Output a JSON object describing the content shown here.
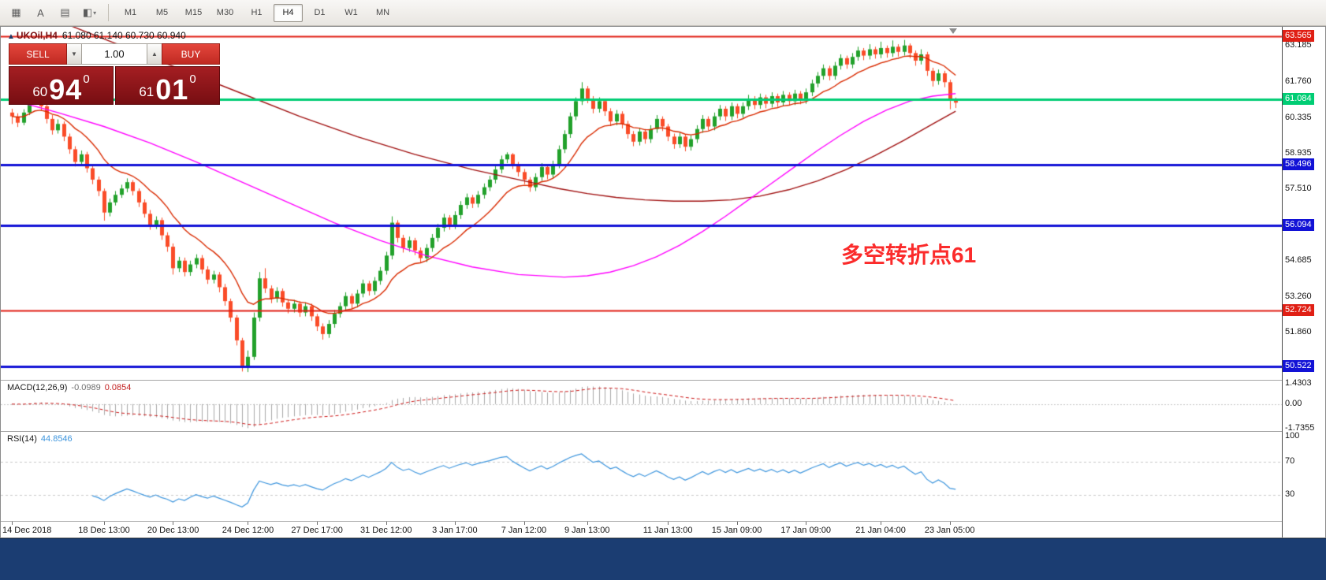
{
  "toolbar": {
    "icon_buttons": [
      {
        "name": "tile-windows-icon",
        "glyph": "▦"
      },
      {
        "name": "text-label-icon",
        "glyph": "A"
      },
      {
        "name": "text-frame-icon",
        "glyph": "▤"
      },
      {
        "name": "object-color-icon",
        "glyph": "◧",
        "dropdown": true
      }
    ],
    "timeframes": [
      "M1",
      "M5",
      "M15",
      "M30",
      "H1",
      "H4",
      "D1",
      "W1",
      "MN"
    ],
    "active_timeframe": "H4"
  },
  "chart": {
    "symbol_label": "UKOil,H4",
    "ohlc_text": "61.080 61.140 60.730 60.940"
  },
  "one_click": {
    "sell_label": "SELL",
    "buy_label": "BUY",
    "volume": "1.00",
    "sell_price": {
      "head": "60",
      "big": "94",
      "sup": "0"
    },
    "buy_price": {
      "head": "61",
      "big": "01",
      "sup": "0"
    }
  },
  "annotation": {
    "text": "多空转折点61",
    "color": "#fb2b2b"
  },
  "price_axis": {
    "plain_ticks": [
      "63.185",
      "61.760",
      "60.335",
      "58.935",
      "57.510",
      "54.685",
      "53.260",
      "51.860"
    ],
    "levels": [
      {
        "price": 63.565,
        "label": "63.565",
        "color": "#e01f14",
        "line_width": 2
      },
      {
        "price": 61.084,
        "label": "61.084",
        "color": "#00cd74",
        "line_width": 3
      },
      {
        "price": 58.496,
        "label": "58.496",
        "color": "#1212d6",
        "line_width": 3
      },
      {
        "price": 56.094,
        "label": "56.094",
        "color": "#1212d6",
        "line_width": 3
      },
      {
        "price": 52.724,
        "label": "52.724",
        "color": "#e01f14",
        "line_width": 2
      },
      {
        "price": 50.522,
        "label": "50.522",
        "color": "#1212d6",
        "line_width": 3
      }
    ]
  },
  "indicators": {
    "macd": {
      "label": "MACD(12,26,9)",
      "value1": "-0.0989",
      "value2": "0.0854",
      "fast": 12,
      "slow": 26,
      "signal": 9,
      "axis": [
        "1.4303",
        "0.00",
        "-1.7355"
      ],
      "ylim": [
        -1.7355,
        1.4303
      ],
      "bar_color": "#a8a8a8",
      "signal_color": "#cc1717"
    },
    "rsi": {
      "label": "RSI(14)",
      "value": "44.8546",
      "period": 14,
      "axis": [
        "100",
        "70",
        "30"
      ],
      "levels": [
        70,
        30
      ],
      "color": "#3d95dd",
      "level_color": "#c8c8c8"
    }
  },
  "chart_data": {
    "type": "candlestick",
    "symbol": "UKOil",
    "timeframe": "H4",
    "up_color": "#22a12b",
    "down_color": "#fa4c28",
    "ma_fast": {
      "type": "EMA",
      "period": 13,
      "color": "#d92b00"
    },
    "ma_mid": {
      "color": "#ff00ff",
      "points": [
        [
          0,
          61.05
        ],
        [
          8,
          60.55
        ],
        [
          16,
          60.0
        ],
        [
          24,
          59.35
        ],
        [
          32,
          58.6
        ],
        [
          40,
          57.8
        ],
        [
          48,
          57.0
        ],
        [
          56,
          56.2
        ],
        [
          64,
          55.5
        ],
        [
          72,
          54.9
        ],
        [
          80,
          54.45
        ],
        [
          88,
          54.15
        ],
        [
          96,
          54.05
        ],
        [
          100,
          54.1
        ],
        [
          104,
          54.25
        ],
        [
          108,
          54.5
        ],
        [
          112,
          54.85
        ],
        [
          116,
          55.3
        ],
        [
          120,
          55.85
        ],
        [
          124,
          56.45
        ],
        [
          128,
          57.1
        ],
        [
          132,
          57.75
        ],
        [
          136,
          58.4
        ],
        [
          140,
          59.05
        ],
        [
          144,
          59.65
        ],
        [
          148,
          60.2
        ],
        [
          152,
          60.65
        ],
        [
          156,
          61.0
        ],
        [
          160,
          61.2
        ],
        [
          164,
          61.3
        ]
      ]
    },
    "ma_slow": {
      "color": "#a01010",
      "points": [
        [
          0,
          64.8
        ],
        [
          10,
          64.0
        ],
        [
          20,
          63.1
        ],
        [
          30,
          62.2
        ],
        [
          40,
          61.3
        ],
        [
          50,
          60.4
        ],
        [
          60,
          59.6
        ],
        [
          70,
          58.9
        ],
        [
          80,
          58.3
        ],
        [
          90,
          57.8
        ],
        [
          95,
          57.55
        ],
        [
          100,
          57.35
        ],
        [
          105,
          57.2
        ],
        [
          110,
          57.1
        ],
        [
          115,
          57.05
        ],
        [
          120,
          57.05
        ],
        [
          125,
          57.1
        ],
        [
          130,
          57.25
        ],
        [
          135,
          57.5
        ],
        [
          140,
          57.85
        ],
        [
          145,
          58.3
        ],
        [
          150,
          58.85
        ],
        [
          155,
          59.45
        ],
        [
          160,
          60.1
        ],
        [
          164,
          60.6
        ]
      ]
    },
    "time_ticks": [
      {
        "label": "14 Dec 2018",
        "bar": 0
      },
      {
        "label": "18 Dec 13:00",
        "bar": 16
      },
      {
        "label": "20 Dec 13:00",
        "bar": 28
      },
      {
        "label": "24 Dec 12:00",
        "bar": 41
      },
      {
        "label": "27 Dec 17:00",
        "bar": 53
      },
      {
        "label": "31 Dec 12:00",
        "bar": 65
      },
      {
        "label": "3 Jan 17:00",
        "bar": 77
      },
      {
        "label": "7 Jan 12:00",
        "bar": 89
      },
      {
        "label": "9 Jan 13:00",
        "bar": 100
      },
      {
        "label": "11 Jan 13:00",
        "bar": 114
      },
      {
        "label": "15 Jan 09:00",
        "bar": 126
      },
      {
        "label": "17 Jan 09:00",
        "bar": 138
      },
      {
        "label": "21 Jan 04:00",
        "bar": 151
      },
      {
        "label": "23 Jan 05:00",
        "bar": 163
      }
    ],
    "candles": [
      [
        60.55,
        60.7,
        60.1,
        60.4
      ],
      [
        60.4,
        60.52,
        59.98,
        60.15
      ],
      [
        60.15,
        60.68,
        60.05,
        60.55
      ],
      [
        60.55,
        61.25,
        60.45,
        61.1
      ],
      [
        61.1,
        61.58,
        60.95,
        61.35
      ],
      [
        61.35,
        61.45,
        60.62,
        60.8
      ],
      [
        60.8,
        60.92,
        60.12,
        60.3
      ],
      [
        60.3,
        60.45,
        59.68,
        59.85
      ],
      [
        59.85,
        60.28,
        59.72,
        60.1
      ],
      [
        60.1,
        60.2,
        59.42,
        59.6
      ],
      [
        59.6,
        59.72,
        58.92,
        59.1
      ],
      [
        59.1,
        59.22,
        58.42,
        58.6
      ],
      [
        58.6,
        59.05,
        58.48,
        58.9
      ],
      [
        58.9,
        59.0,
        58.18,
        58.35
      ],
      [
        58.35,
        58.48,
        57.72,
        57.9
      ],
      [
        57.9,
        58.02,
        57.25,
        57.45
      ],
      [
        57.45,
        57.55,
        56.28,
        56.6
      ],
      [
        56.6,
        57.15,
        56.45,
        57.0
      ],
      [
        57.0,
        57.45,
        56.88,
        57.3
      ],
      [
        57.3,
        57.7,
        57.18,
        57.55
      ],
      [
        57.55,
        57.95,
        57.4,
        57.8
      ],
      [
        57.8,
        57.88,
        57.28,
        57.45
      ],
      [
        57.45,
        57.55,
        56.82,
        57.0
      ],
      [
        57.0,
        57.12,
        56.4,
        56.55
      ],
      [
        56.55,
        56.7,
        55.92,
        56.1
      ],
      [
        56.1,
        56.45,
        55.95,
        56.3
      ],
      [
        56.3,
        56.4,
        55.52,
        55.7
      ],
      [
        55.7,
        55.82,
        55.05,
        55.25
      ],
      [
        55.25,
        55.38,
        54.15,
        54.4
      ],
      [
        54.4,
        54.85,
        54.25,
        54.7
      ],
      [
        54.7,
        54.82,
        54.08,
        54.25
      ],
      [
        54.25,
        54.7,
        54.1,
        54.55
      ],
      [
        54.55,
        54.95,
        54.4,
        54.8
      ],
      [
        54.8,
        54.92,
        54.18,
        54.35
      ],
      [
        54.35,
        54.48,
        53.78,
        53.95
      ],
      [
        53.95,
        54.3,
        53.8,
        54.15
      ],
      [
        54.15,
        54.25,
        53.45,
        53.65
      ],
      [
        53.65,
        53.78,
        52.92,
        53.1
      ],
      [
        53.1,
        53.2,
        52.28,
        52.45
      ],
      [
        52.45,
        52.55,
        51.35,
        51.55
      ],
      [
        51.55,
        51.65,
        50.32,
        50.5
      ],
      [
        50.5,
        51.15,
        50.3,
        50.9
      ],
      [
        50.9,
        52.65,
        50.78,
        52.45
      ],
      [
        52.45,
        54.25,
        52.3,
        54.0
      ],
      [
        54.0,
        54.4,
        53.42,
        53.6
      ],
      [
        53.6,
        53.72,
        53.02,
        53.2
      ],
      [
        53.2,
        53.65,
        53.05,
        53.5
      ],
      [
        53.5,
        53.6,
        52.88,
        53.05
      ],
      [
        53.05,
        53.18,
        52.62,
        52.8
      ],
      [
        52.8,
        53.15,
        52.65,
        53.0
      ],
      [
        53.0,
        53.1,
        52.48,
        52.65
      ],
      [
        52.65,
        53.05,
        52.5,
        52.9
      ],
      [
        52.9,
        53.0,
        52.32,
        52.5
      ],
      [
        52.5,
        52.6,
        51.92,
        52.1
      ],
      [
        52.1,
        52.22,
        51.58,
        51.8
      ],
      [
        51.8,
        52.35,
        51.65,
        52.2
      ],
      [
        52.2,
        52.75,
        52.05,
        52.6
      ],
      [
        52.6,
        53.05,
        52.45,
        52.9
      ],
      [
        52.9,
        53.45,
        52.75,
        53.3
      ],
      [
        53.3,
        53.4,
        52.82,
        53.0
      ],
      [
        53.0,
        53.55,
        52.85,
        53.4
      ],
      [
        53.4,
        53.95,
        53.25,
        53.8
      ],
      [
        53.8,
        53.9,
        53.32,
        53.5
      ],
      [
        53.5,
        54.05,
        53.35,
        53.9
      ],
      [
        53.9,
        54.45,
        53.75,
        54.3
      ],
      [
        54.3,
        55.05,
        54.15,
        54.9
      ],
      [
        54.9,
        56.45,
        54.75,
        56.2
      ],
      [
        56.2,
        56.3,
        55.42,
        55.6
      ],
      [
        55.6,
        55.72,
        55.02,
        55.2
      ],
      [
        55.2,
        55.65,
        55.05,
        55.5
      ],
      [
        55.5,
        55.6,
        54.92,
        55.1
      ],
      [
        55.1,
        55.22,
        54.62,
        54.8
      ],
      [
        54.8,
        55.35,
        54.65,
        55.2
      ],
      [
        55.2,
        55.75,
        55.05,
        55.6
      ],
      [
        55.6,
        56.15,
        55.45,
        56.0
      ],
      [
        56.0,
        56.55,
        55.85,
        56.4
      ],
      [
        56.4,
        56.5,
        55.92,
        56.1
      ],
      [
        56.1,
        56.65,
        55.95,
        56.5
      ],
      [
        56.5,
        57.05,
        56.35,
        56.9
      ],
      [
        56.9,
        57.35,
        56.75,
        57.2
      ],
      [
        57.2,
        57.3,
        56.78,
        56.95
      ],
      [
        56.95,
        57.45,
        56.8,
        57.3
      ],
      [
        57.3,
        57.75,
        57.15,
        57.6
      ],
      [
        57.6,
        58.05,
        57.45,
        57.9
      ],
      [
        57.9,
        58.45,
        57.75,
        58.3
      ],
      [
        58.3,
        58.85,
        58.15,
        58.7
      ],
      [
        58.7,
        58.98,
        58.55,
        58.9
      ],
      [
        58.9,
        58.95,
        58.32,
        58.5
      ],
      [
        58.5,
        58.6,
        58.02,
        58.2
      ],
      [
        58.2,
        58.32,
        57.72,
        57.9
      ],
      [
        57.9,
        58.0,
        57.42,
        57.6
      ],
      [
        57.6,
        58.15,
        57.45,
        58.0
      ],
      [
        58.0,
        58.55,
        57.85,
        58.4
      ],
      [
        58.4,
        58.5,
        57.92,
        58.1
      ],
      [
        58.1,
        58.65,
        57.95,
        58.5
      ],
      [
        58.5,
        59.25,
        58.35,
        59.1
      ],
      [
        59.1,
        59.85,
        58.95,
        59.7
      ],
      [
        59.7,
        60.55,
        59.55,
        60.4
      ],
      [
        60.4,
        61.15,
        60.25,
        61.0
      ],
      [
        61.0,
        61.75,
        60.85,
        61.5
      ],
      [
        61.5,
        61.6,
        60.92,
        61.1
      ],
      [
        61.1,
        61.2,
        60.52,
        60.7
      ],
      [
        60.7,
        61.15,
        60.55,
        61.0
      ],
      [
        61.0,
        61.1,
        60.42,
        60.6
      ],
      [
        60.6,
        60.72,
        60.02,
        60.2
      ],
      [
        60.2,
        60.65,
        60.05,
        60.5
      ],
      [
        60.5,
        60.6,
        59.92,
        60.1
      ],
      [
        60.1,
        60.22,
        59.52,
        59.7
      ],
      [
        59.7,
        59.82,
        59.22,
        59.4
      ],
      [
        59.4,
        59.95,
        59.25,
        59.8
      ],
      [
        59.8,
        59.9,
        59.32,
        59.5
      ],
      [
        59.5,
        60.05,
        59.35,
        59.9
      ],
      [
        59.9,
        60.45,
        59.75,
        60.3
      ],
      [
        60.3,
        60.4,
        59.82,
        60.0
      ],
      [
        60.0,
        60.1,
        59.42,
        59.6
      ],
      [
        59.6,
        59.72,
        59.12,
        59.3
      ],
      [
        59.3,
        59.75,
        59.15,
        59.6
      ],
      [
        59.6,
        59.7,
        59.02,
        59.2
      ],
      [
        59.2,
        59.65,
        59.05,
        59.5
      ],
      [
        59.5,
        60.05,
        59.35,
        59.9
      ],
      [
        59.9,
        60.45,
        59.75,
        60.3
      ],
      [
        60.3,
        60.4,
        59.85,
        60.0
      ],
      [
        60.0,
        60.55,
        59.85,
        60.4
      ],
      [
        60.4,
        60.85,
        60.25,
        60.7
      ],
      [
        60.7,
        60.8,
        60.22,
        60.4
      ],
      [
        60.4,
        60.95,
        60.25,
        60.8
      ],
      [
        60.8,
        60.9,
        60.32,
        60.5
      ],
      [
        60.5,
        60.95,
        60.35,
        60.8
      ],
      [
        60.8,
        61.25,
        60.65,
        61.1
      ],
      [
        61.1,
        61.2,
        60.68,
        60.85
      ],
      [
        60.85,
        61.3,
        60.7,
        61.15
      ],
      [
        61.15,
        61.25,
        60.72,
        60.9
      ],
      [
        60.9,
        61.35,
        60.75,
        61.2
      ],
      [
        61.2,
        61.3,
        60.78,
        60.95
      ],
      [
        60.95,
        61.4,
        60.8,
        61.25
      ],
      [
        61.25,
        61.35,
        60.82,
        61.0
      ],
      [
        61.0,
        61.45,
        60.85,
        61.3
      ],
      [
        61.3,
        61.4,
        60.88,
        61.05
      ],
      [
        61.05,
        61.5,
        60.9,
        61.35
      ],
      [
        61.35,
        61.85,
        61.2,
        61.7
      ],
      [
        61.7,
        62.15,
        61.55,
        62.0
      ],
      [
        62.0,
        62.45,
        61.85,
        62.3
      ],
      [
        62.3,
        62.4,
        61.82,
        62.0
      ],
      [
        62.0,
        62.55,
        61.85,
        62.4
      ],
      [
        62.4,
        62.85,
        62.25,
        62.7
      ],
      [
        62.7,
        62.8,
        62.28,
        62.45
      ],
      [
        62.45,
        62.9,
        62.3,
        62.75
      ],
      [
        62.75,
        63.15,
        62.6,
        63.0
      ],
      [
        63.0,
        63.1,
        62.62,
        62.8
      ],
      [
        62.8,
        63.25,
        62.65,
        63.05
      ],
      [
        63.05,
        63.15,
        62.68,
        62.85
      ],
      [
        62.85,
        63.35,
        62.7,
        63.1
      ],
      [
        63.1,
        63.2,
        62.72,
        62.9
      ],
      [
        62.9,
        63.4,
        62.75,
        63.15
      ],
      [
        63.15,
        63.25,
        62.76,
        62.95
      ],
      [
        62.95,
        63.42,
        62.8,
        63.2
      ],
      [
        63.2,
        63.28,
        62.7,
        62.9
      ],
      [
        62.9,
        63.0,
        62.4,
        62.6
      ],
      [
        62.6,
        63.05,
        62.45,
        62.85
      ],
      [
        62.85,
        62.95,
        62.0,
        62.2
      ],
      [
        62.2,
        62.32,
        61.58,
        61.8
      ],
      [
        61.8,
        62.25,
        61.65,
        62.1
      ],
      [
        62.1,
        62.2,
        61.55,
        61.75
      ],
      [
        61.75,
        61.85,
        60.68,
        61.08
      ],
      [
        61.08,
        61.14,
        60.73,
        60.94
      ]
    ]
  }
}
